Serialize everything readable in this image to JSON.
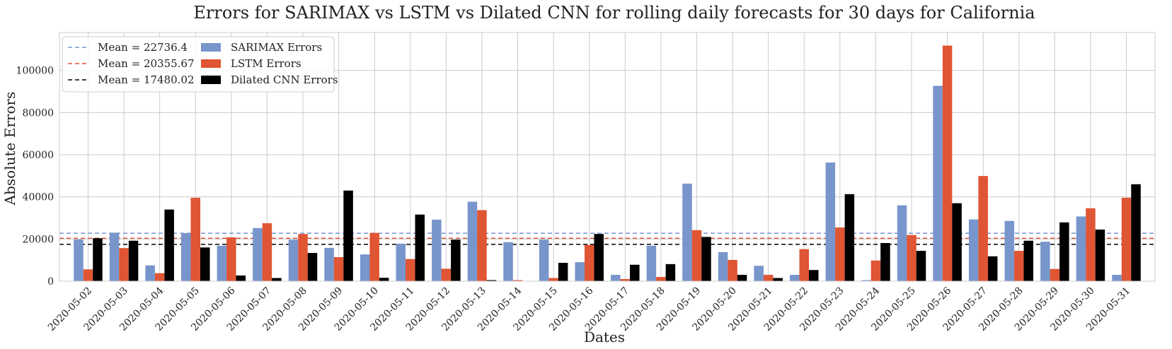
{
  "chart_data": {
    "type": "bar",
    "title": "Errors for SARIMAX vs LSTM vs Dilated CNN for rolling daily forecasts for 30 days for California",
    "xlabel": "Dates",
    "ylabel": "Absolute Errors",
    "ylim": [
      0,
      118000
    ],
    "yticks": [
      0,
      20000,
      40000,
      60000,
      80000,
      100000
    ],
    "grid": true,
    "legend_position": "top-left",
    "categories": [
      "2020-05-02",
      "2020-05-03",
      "2020-05-04",
      "2020-05-05",
      "2020-05-06",
      "2020-05-07",
      "2020-05-08",
      "2020-05-09",
      "2020-05-10",
      "2020-05-11",
      "2020-05-12",
      "2020-05-13",
      "2020-05-14",
      "2020-05-15",
      "2020-05-16",
      "2020-05-17",
      "2020-05-18",
      "2020-05-19",
      "2020-05-20",
      "2020-05-21",
      "2020-05-22",
      "2020-05-23",
      "2020-05-24",
      "2020-05-25",
      "2020-05-26",
      "2020-05-27",
      "2020-05-28",
      "2020-05-29",
      "2020-05-30",
      "2020-05-31"
    ],
    "series": [
      {
        "name": "SARIMAX Errors",
        "color": "#7895cc",
        "values": [
          19800,
          23000,
          7500,
          22800,
          16800,
          25200,
          19700,
          15800,
          12700,
          17800,
          29200,
          37700,
          18500,
          19700,
          9000,
          3000,
          16800,
          46300,
          13800,
          7300,
          3000,
          56300,
          500,
          36000,
          92700,
          29300,
          28600,
          18700,
          30700,
          3000
        ]
      },
      {
        "name": "LSTM Errors",
        "color": "#e05533",
        "values": [
          5600,
          15700,
          3800,
          39600,
          20800,
          27500,
          22400,
          11400,
          22900,
          10500,
          5900,
          33700,
          500,
          1500,
          17200,
          1000,
          2000,
          24200,
          10100,
          3000,
          15200,
          25500,
          9800,
          21900,
          111800,
          49900,
          14400,
          5800,
          34600,
          39600
        ]
      },
      {
        "name": "Dilated CNN Errors",
        "color": "#000000",
        "values": [
          20400,
          19200,
          34000,
          16000,
          2700,
          1500,
          13400,
          43000,
          1600,
          31600,
          19700,
          500,
          0,
          8700,
          22400,
          7800,
          8100,
          21000,
          3000,
          1500,
          5300,
          41300,
          18100,
          14400,
          37000,
          11800,
          19200,
          27900,
          24500,
          46000
        ]
      }
    ],
    "mean_lines": [
      {
        "label": "Mean = 22736.4",
        "value": 22736.4,
        "color": "#7895cc"
      },
      {
        "label": "Mean = 20355.67",
        "value": 20355.67,
        "color": "#e05533"
      },
      {
        "label": "Mean = 17480.02",
        "value": 17480.02,
        "color": "#000000"
      }
    ]
  }
}
